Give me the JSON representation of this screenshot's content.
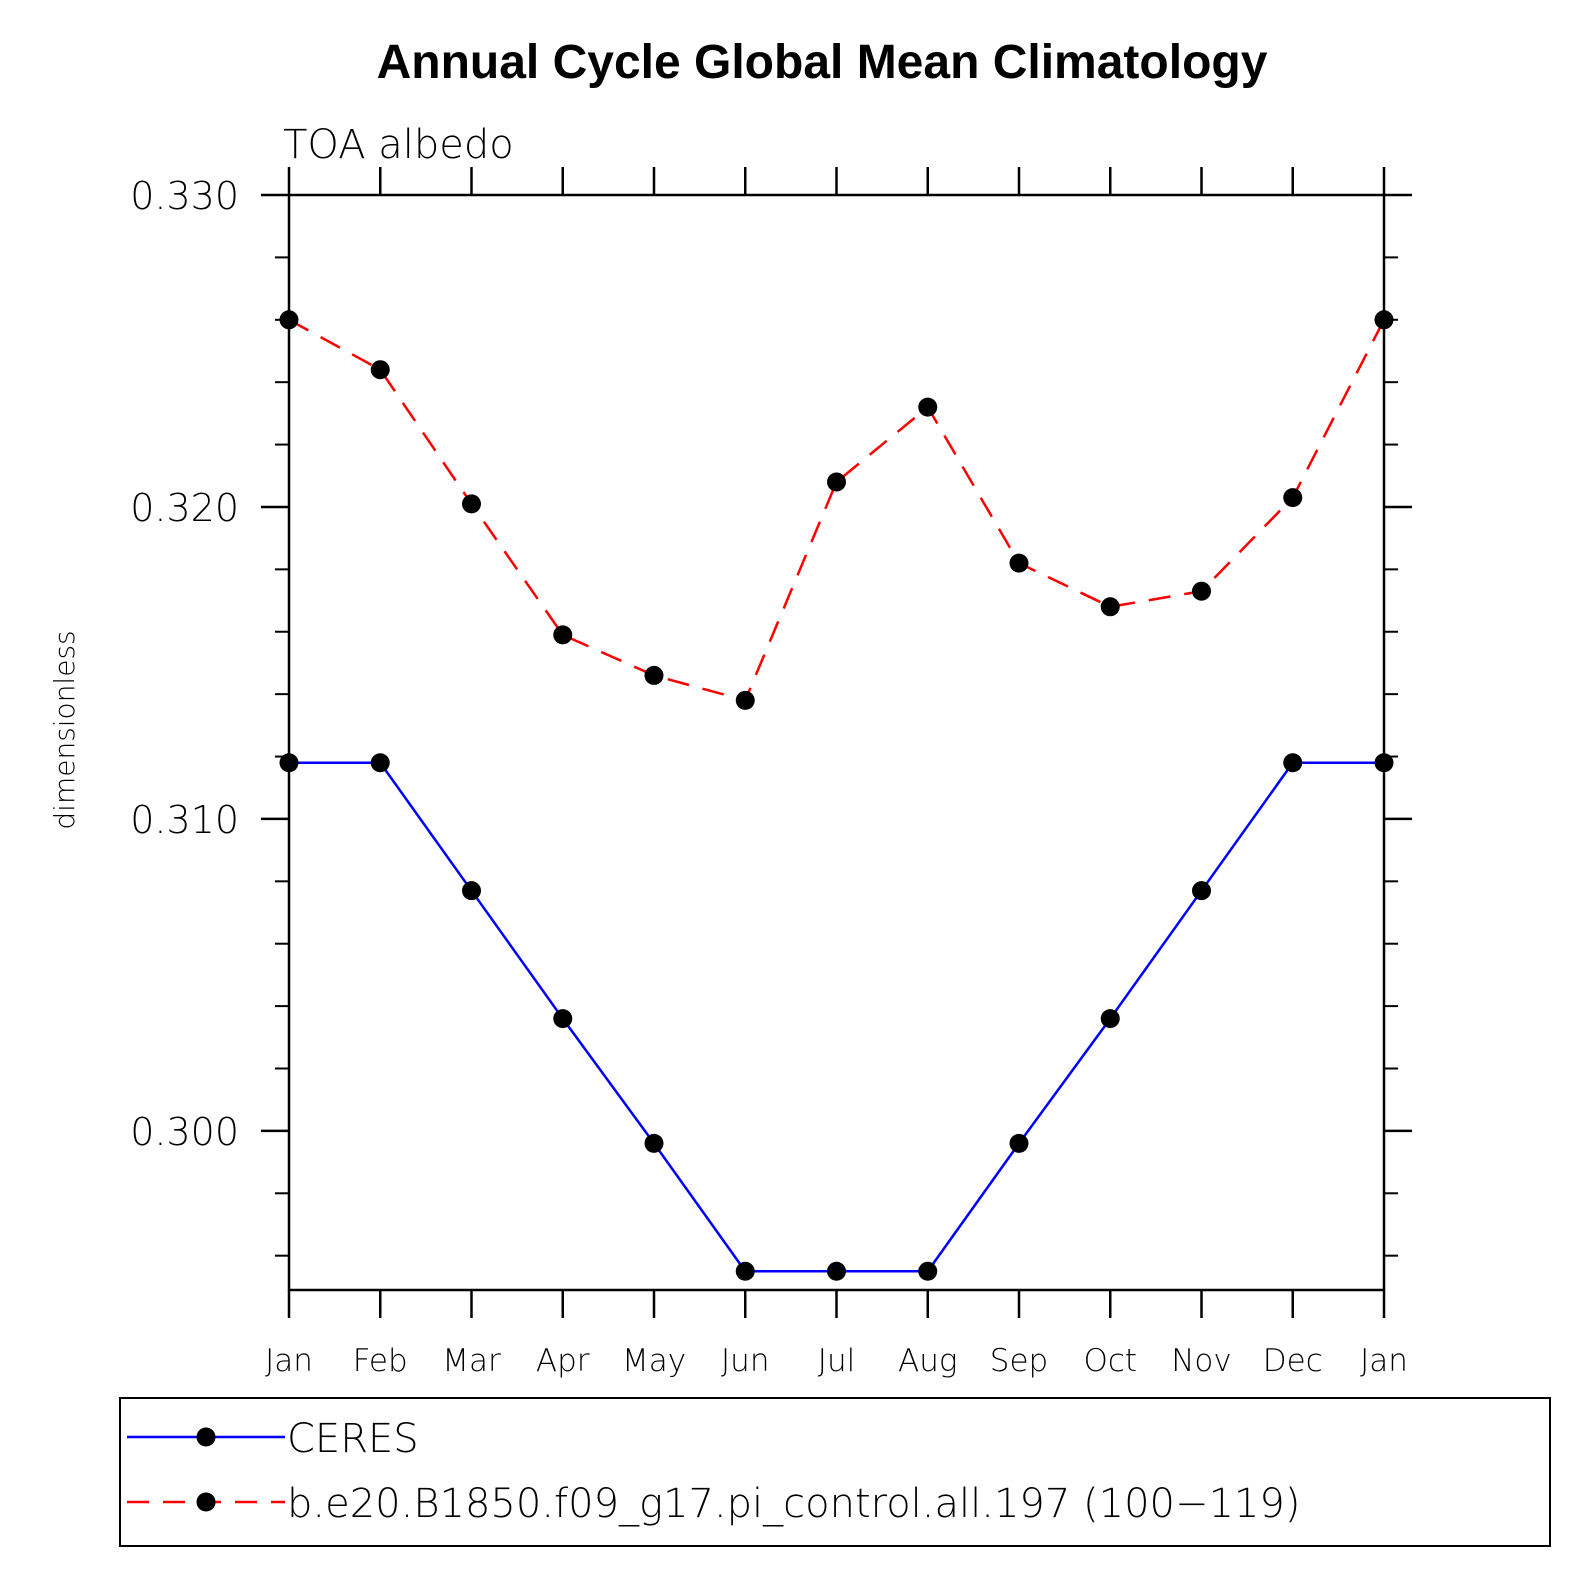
{
  "title": "Annual Cycle Global Mean Climatology",
  "subtitle": "TOA albedo",
  "chart_data": {
    "type": "line",
    "title": "Annual Cycle Global Mean Climatology",
    "subtitle": "TOA albedo",
    "ylabel": "dimensionless",
    "xlabel": "",
    "categories": [
      "Jan",
      "Feb",
      "Mar",
      "Apr",
      "May",
      "Jun",
      "Jul",
      "Aug",
      "Sep",
      "Oct",
      "Nov",
      "Dec",
      "Jan"
    ],
    "ylim": [
      0.2949,
      0.33
    ],
    "yticks": [
      0.3,
      0.31,
      0.32,
      0.33
    ],
    "ytick_labels": [
      "0.300",
      "0.310",
      "0.320",
      "0.330"
    ],
    "y_minor_step": 0.002,
    "series": [
      {
        "name": "CERES",
        "color": "#0000ff",
        "line_style": "solid",
        "marker": "filled-circle",
        "values": [
          0.3118,
          0.3118,
          0.3077,
          0.3036,
          0.2996,
          0.2955,
          0.2955,
          0.2955,
          0.2996,
          0.3036,
          0.3077,
          0.3118,
          0.3118
        ]
      },
      {
        "name": "b.e20.B1850.f09_g17.pi_control.all.197 (100−119)",
        "color": "#ff0000",
        "line_style": "dashed",
        "marker": "filled-circle",
        "values": [
          0.326,
          0.3244,
          0.3201,
          0.3159,
          0.3146,
          0.3138,
          0.3208,
          0.3232,
          0.3182,
          0.3168,
          0.3173,
          0.3203,
          0.326
        ]
      }
    ],
    "legend_position": "bottom",
    "grid": false
  },
  "legend": {
    "entries": [
      {
        "label": "CERES"
      },
      {
        "label": "b.e20.B1850.f09_g17.pi_control.all.197 (100−119)"
      }
    ]
  }
}
